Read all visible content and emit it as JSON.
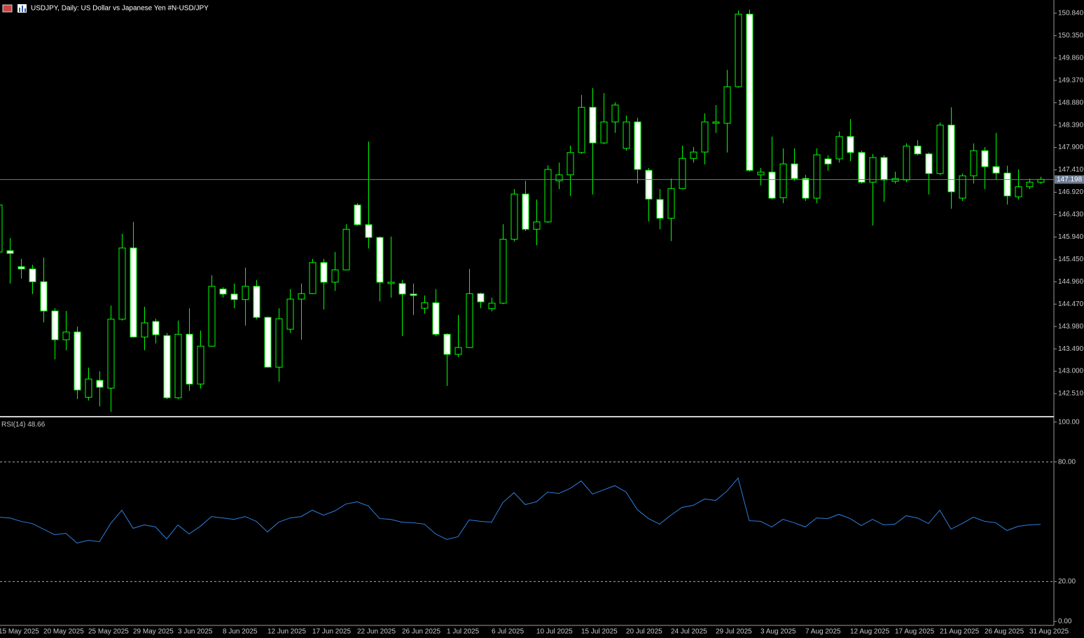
{
  "title": "USDJPY, Daily:  US Dollar vs  Japanese Yen #N-USD/JPY",
  "chart_data": [
    {
      "type": "candlestick",
      "categories": [
        "15 May 2025",
        null,
        null,
        null,
        "20 May 2025",
        null,
        null,
        null,
        "25 May 2025",
        null,
        null,
        null,
        "29 May 2025",
        null,
        null,
        null,
        "3 Jun 2025",
        null,
        null,
        null,
        "8 Jun 2025",
        null,
        null,
        null,
        "12 Jun 2025",
        null,
        null,
        null,
        "17 Jun 2025",
        null,
        null,
        null,
        "22 Jun 2025",
        null,
        null,
        null,
        "26 Jun 2025",
        null,
        null,
        null,
        "1 Jul 2025",
        null,
        null,
        null,
        "6 Jul 2025",
        null,
        null,
        null,
        "10 Jul 2025",
        null,
        null,
        null,
        "15 Jul 2025",
        null,
        null,
        null,
        "20 Jul 2025",
        null,
        null,
        null,
        "24 Jul 2025",
        null,
        null,
        null,
        "29 Jul 2025",
        null,
        null,
        null,
        "3 Aug 2025",
        null,
        null,
        null,
        "7 Aug 2025",
        null,
        null,
        null,
        "12 Aug 2025",
        null,
        null,
        null,
        "17 Aug 2025",
        null,
        null,
        null,
        "21 Aug 2025",
        null,
        null,
        null,
        "26 Aug 2025",
        null,
        null,
        null,
        "31 Aug 2025",
        null
      ],
      "open": [
        145.61,
        145.64,
        145.29,
        145.24,
        144.96,
        144.32,
        143.69,
        143.86,
        142.43,
        142.8,
        142.63,
        144.14,
        145.7,
        143.75,
        144.09,
        143.78,
        142.42,
        143.81,
        142.72,
        143.55,
        144.8,
        144.69,
        144.57,
        144.86,
        144.18,
        143.09,
        143.92,
        144.58,
        144.7,
        145.38,
        144.95,
        145.22,
        146.64,
        146.21,
        145.93,
        144.92,
        144.92,
        144.69,
        144.38,
        144.5,
        143.81,
        143.37,
        143.52,
        144.7,
        144.37,
        144.49,
        145.89,
        146.88,
        146.11,
        146.27,
        147.17,
        147.3,
        147.79,
        148.78,
        148.0,
        148.46,
        147.88,
        148.46,
        147.4,
        146.76,
        146.35,
        147.0,
        147.66,
        147.8,
        148.43,
        148.43,
        149.23,
        150.82,
        147.3,
        147.36,
        146.8,
        147.54,
        147.22,
        146.79,
        147.65,
        147.65,
        148.14,
        147.79,
        147.14,
        147.68,
        147.16,
        147.19,
        147.93,
        147.76,
        147.33,
        148.39,
        146.79,
        147.28,
        147.83,
        147.48,
        147.34,
        146.82,
        147.04,
        147.14
      ],
      "high": [
        146.65,
        145.92,
        145.46,
        145.33,
        145.49,
        144.38,
        144.32,
        143.98,
        143.08,
        143.0,
        144.44,
        146.01,
        146.27,
        144.41,
        144.15,
        143.84,
        144.11,
        144.38,
        143.89,
        145.1,
        144.84,
        144.92,
        145.27,
        145.0,
        144.2,
        144.38,
        144.8,
        144.92,
        145.46,
        145.46,
        145.61,
        146.22,
        146.68,
        148.03,
        145.95,
        145.95,
        145.0,
        144.92,
        144.66,
        144.8,
        143.83,
        144.23,
        145.24,
        144.72,
        144.61,
        146.22,
        146.99,
        147.17,
        146.76,
        147.51,
        147.57,
        147.94,
        149.05,
        149.2,
        149.09,
        148.89,
        148.6,
        148.55,
        147.45,
        146.99,
        147.22,
        147.94,
        147.91,
        148.65,
        148.83,
        149.6,
        150.9,
        150.92,
        147.45,
        148.14,
        147.88,
        147.88,
        147.3,
        147.88,
        147.73,
        148.25,
        148.52,
        147.83,
        147.76,
        147.73,
        147.37,
        147.99,
        148.06,
        147.79,
        148.45,
        148.78,
        147.33,
        147.99,
        147.91,
        148.22,
        147.5,
        147.42,
        147.22,
        147.26
      ],
      "low": [
        145.55,
        144.92,
        145.03,
        144.69,
        144.07,
        143.26,
        143.46,
        142.39,
        142.36,
        142.23,
        142.11,
        144.11,
        143.74,
        143.46,
        143.61,
        142.39,
        142.39,
        142.57,
        142.62,
        143.54,
        144.61,
        144.38,
        144.0,
        144.14,
        143.08,
        142.77,
        143.84,
        143.69,
        144.69,
        144.35,
        144.76,
        145.21,
        146.19,
        145.69,
        144.53,
        144.61,
        143.77,
        144.23,
        144.26,
        143.77,
        142.68,
        143.31,
        143.51,
        144.38,
        144.31,
        144.47,
        145.84,
        146.07,
        145.76,
        146.25,
        146.99,
        146.84,
        147.76,
        146.87,
        147.97,
        148.22,
        147.83,
        147.11,
        146.28,
        146.11,
        145.85,
        146.99,
        147.57,
        147.53,
        148.22,
        147.79,
        149.21,
        147.37,
        147.07,
        146.76,
        146.68,
        147.17,
        146.73,
        146.68,
        147.39,
        147.57,
        147.6,
        147.11,
        146.19,
        146.71,
        147.11,
        147.14,
        147.73,
        146.87,
        147.3,
        146.56,
        146.73,
        147.11,
        146.99,
        147.2,
        146.65,
        146.76,
        146.99,
        147.1
      ],
      "close": [
        146.64,
        145.58,
        145.24,
        144.96,
        144.32,
        143.69,
        143.86,
        142.59,
        142.83,
        142.65,
        144.14,
        145.7,
        143.75,
        144.06,
        143.8,
        142.42,
        143.81,
        142.72,
        143.55,
        144.86,
        144.69,
        144.57,
        144.86,
        144.18,
        143.09,
        144.15,
        144.58,
        144.7,
        145.38,
        144.95,
        145.22,
        146.11,
        146.21,
        145.93,
        144.95,
        144.95,
        144.69,
        144.66,
        144.5,
        143.81,
        143.37,
        143.52,
        144.7,
        144.52,
        144.49,
        145.89,
        146.88,
        146.11,
        146.27,
        147.42,
        147.3,
        147.79,
        148.78,
        148.0,
        148.46,
        148.83,
        148.46,
        147.42,
        146.77,
        146.35,
        147.0,
        147.66,
        147.8,
        148.46,
        148.46,
        149.23,
        150.82,
        147.4,
        147.36,
        146.79,
        147.54,
        147.22,
        146.79,
        147.74,
        147.54,
        148.14,
        147.79,
        147.14,
        147.68,
        147.19,
        147.22,
        147.93,
        147.76,
        147.33,
        148.39,
        146.93,
        147.28,
        147.83,
        147.48,
        147.34,
        146.84,
        147.04,
        147.14,
        147.2
      ],
      "up_color": "#000000",
      "down_color": "#ffffff",
      "wick_color": "#00ff00",
      "ylim": [
        142.02,
        151.13
      ],
      "yticks": [
        {
          "value": 150.84,
          "label": "150.840"
        },
        {
          "value": 150.35,
          "label": "150.350"
        },
        {
          "value": 149.86,
          "label": "149.860"
        },
        {
          "value": 149.37,
          "label": "149.370"
        },
        {
          "value": 148.88,
          "label": "148.880"
        },
        {
          "value": 148.39,
          "label": "148.390"
        },
        {
          "value": 147.9,
          "label": "147.900"
        },
        {
          "value": 147.41,
          "label": "147.410"
        },
        {
          "value": 146.92,
          "label": "146.920"
        },
        {
          "value": 146.43,
          "label": "146.430"
        },
        {
          "value": 145.94,
          "label": "145.940"
        },
        {
          "value": 145.45,
          "label": "145.450"
        },
        {
          "value": 144.96,
          "label": "144.960"
        },
        {
          "value": 144.47,
          "label": "144.470"
        },
        {
          "value": 143.98,
          "label": "143.980"
        },
        {
          "value": 143.49,
          "label": "143.490"
        },
        {
          "value": 143.0,
          "label": "143.000"
        },
        {
          "value": 142.51,
          "label": "142.510"
        }
      ],
      "price_line": {
        "value": 147.198,
        "label": "147.198",
        "color": "#6e7d94"
      }
    },
    {
      "type": "line",
      "title": "RSI(14)",
      "series": [
        {
          "name": "RSI(14)",
          "color": "#2f7fe0",
          "values": [
            52.3,
            51.9,
            50.2,
            49.1,
            46.3,
            43.5,
            44.2,
            39.3,
            40.7,
            40.0,
            49.1,
            55.8,
            46.7,
            48.4,
            47.4,
            41.4,
            48.4,
            43.9,
            47.7,
            52.6,
            51.9,
            51.2,
            52.6,
            50.2,
            44.9,
            49.8,
            51.9,
            52.6,
            55.8,
            53.3,
            55.4,
            58.9,
            60.0,
            57.9,
            51.6,
            51.2,
            49.8,
            49.5,
            48.8,
            43.9,
            41.1,
            42.5,
            50.9,
            50.2,
            49.8,
            59.6,
            64.6,
            58.6,
            60.0,
            64.9,
            64.2,
            66.7,
            70.5,
            63.9,
            66.0,
            68.1,
            64.9,
            56.1,
            51.6,
            48.8,
            53.3,
            57.2,
            58.2,
            61.4,
            60.7,
            65.3,
            71.9,
            50.5,
            50.2,
            47.4,
            51.2,
            49.5,
            47.4,
            51.9,
            51.6,
            53.7,
            51.6,
            48.1,
            51.2,
            48.4,
            48.8,
            53.0,
            51.9,
            49.1,
            55.8,
            46.3,
            49.1,
            52.3,
            50.2,
            49.5,
            45.6,
            47.7,
            48.4,
            48.66
          ]
        }
      ],
      "ylim": [
        -2,
        102
      ],
      "yticks": [
        {
          "value": 100,
          "label": "100.00"
        },
        {
          "value": 80,
          "label": "80.00"
        },
        {
          "value": 20,
          "label": "20.00"
        },
        {
          "value": 0,
          "label": "0.00"
        }
      ],
      "grid_levels": [
        80,
        20
      ]
    }
  ]
}
